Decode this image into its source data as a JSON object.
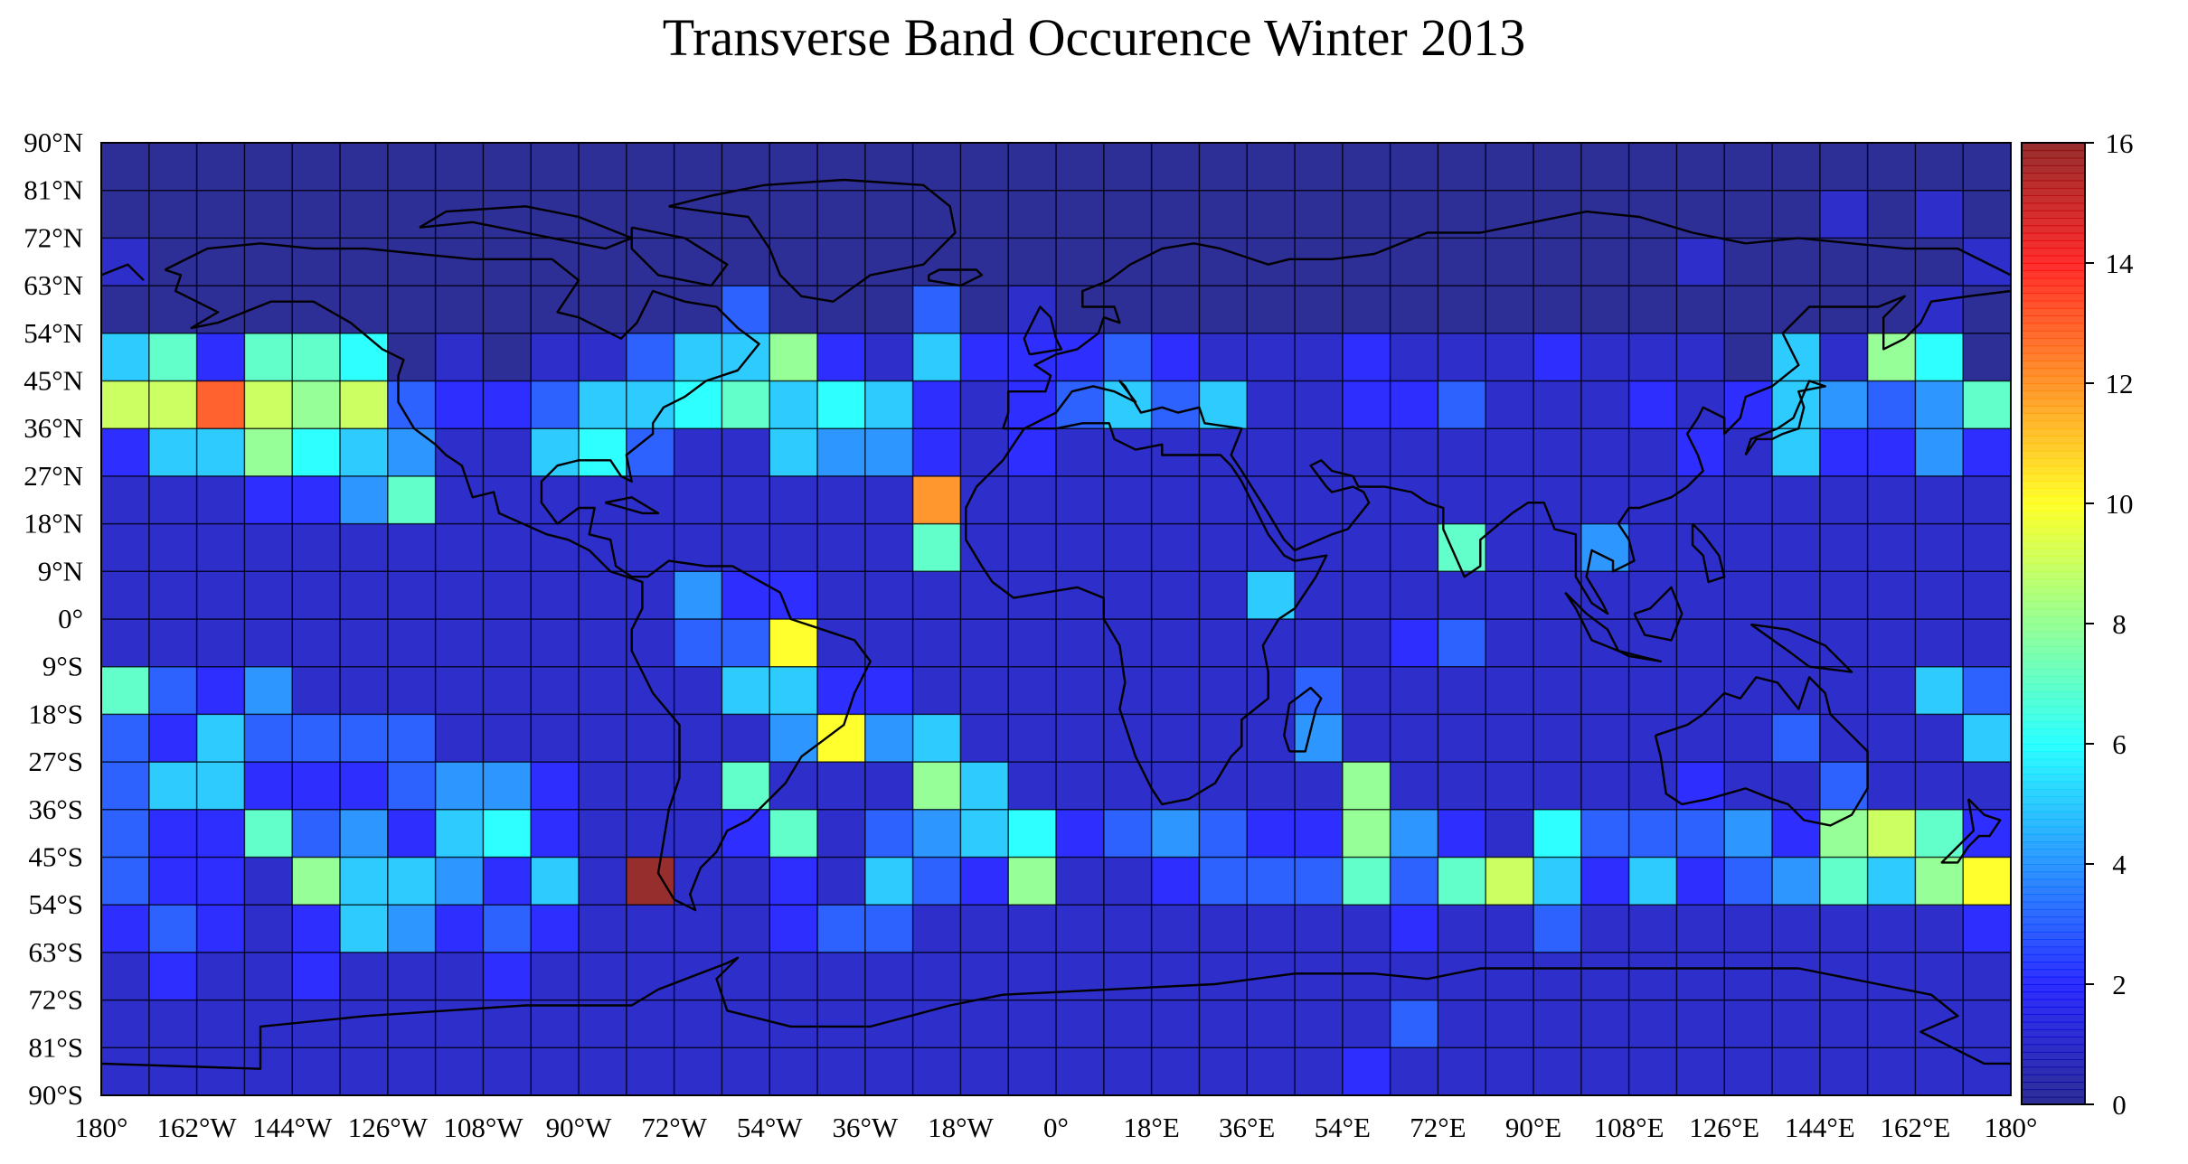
{
  "chart_data": {
    "type": "heatmap",
    "title": "Transverse Band Occurence Winter 2013",
    "xlabel": "",
    "ylabel": "",
    "x_tick_labels": [
      "180°",
      "162°W",
      "144°W",
      "126°W",
      "108°W",
      "90°W",
      "72°W",
      "54°W",
      "36°W",
      "18°W",
      "0°",
      "18°E",
      "36°E",
      "54°E",
      "72°E",
      "90°E",
      "108°E",
      "126°E",
      "144°E",
      "162°E",
      "180°"
    ],
    "y_tick_labels": [
      "90°N",
      "81°N",
      "72°N",
      "63°N",
      "54°N",
      "45°N",
      "36°N",
      "27°N",
      "18°N",
      "9°N",
      "0°",
      "9°S",
      "18°S",
      "27°S",
      "36°S",
      "45°S",
      "54°S",
      "63°S",
      "72°S",
      "81°S",
      "90°S"
    ],
    "xlim": [
      -180,
      180
    ],
    "ylim": [
      -90,
      90
    ],
    "grid_resolution_deg": 9,
    "colorbar": {
      "colormap": "jet",
      "range": [
        0,
        16
      ],
      "tick_labels": [
        "0",
        "2",
        "4",
        "6",
        "8",
        "10",
        "12",
        "14",
        "16"
      ],
      "placement": "right"
    },
    "grid": true,
    "row_order": "north-to-south (90°N to 90°S), columns west-to-east (180° to 180°)",
    "values": [
      [
        0,
        0,
        0,
        0,
        0,
        0,
        0,
        0,
        0,
        0,
        0,
        0,
        0,
        0,
        0,
        0,
        0,
        0,
        0,
        0,
        0,
        0,
        0,
        0,
        0,
        0,
        0,
        0,
        0,
        0,
        0,
        0,
        0,
        0,
        0,
        0,
        0,
        0,
        0,
        0
      ],
      [
        0,
        0,
        0,
        0,
        0,
        0,
        0,
        0,
        0,
        0,
        0,
        0,
        0,
        0,
        0,
        0,
        0,
        0,
        0,
        0,
        0,
        0,
        0,
        0,
        0,
        0,
        0,
        0,
        0,
        0,
        0,
        0,
        0,
        0,
        0,
        0,
        1,
        0,
        1,
        0
      ],
      [
        1,
        0,
        0,
        0,
        0,
        0,
        0,
        0,
        0,
        0,
        0,
        0,
        0,
        0,
        0,
        0,
        0,
        0,
        0,
        0,
        0,
        0,
        0,
        0,
        0,
        0,
        0,
        0,
        0,
        0,
        0,
        0,
        0,
        1,
        0,
        0,
        0,
        0,
        0,
        1
      ],
      [
        0,
        0,
        0,
        0,
        0,
        0,
        0,
        0,
        0,
        0,
        0,
        0,
        0,
        3,
        0,
        0,
        0,
        3,
        0,
        1,
        0,
        0,
        0,
        0,
        0,
        0,
        0,
        0,
        0,
        0,
        0,
        0,
        0,
        0,
        0,
        0,
        0,
        0,
        1,
        0
      ],
      [
        5,
        7,
        2,
        7,
        7,
        6,
        0,
        1,
        0,
        1,
        1,
        3,
        5,
        5,
        8,
        2,
        1,
        5,
        2,
        2,
        2,
        3,
        2,
        1,
        1,
        1,
        2,
        1,
        1,
        1,
        2,
        1,
        1,
        1,
        0,
        5,
        1,
        8,
        6,
        0
      ],
      [
        9,
        9,
        13,
        9,
        8,
        9,
        3,
        2,
        2,
        3,
        5,
        5,
        6,
        7,
        5,
        6,
        5,
        2,
        1,
        2,
        3,
        5,
        3,
        5,
        1,
        1,
        2,
        2,
        3,
        1,
        1,
        1,
        2,
        1,
        2,
        5,
        4,
        3,
        4,
        7
      ],
      [
        2,
        5,
        5,
        8,
        6,
        5,
        4,
        1,
        1,
        5,
        6,
        3,
        1,
        1,
        5,
        4,
        4,
        2,
        1,
        2,
        1,
        1,
        1,
        1,
        1,
        1,
        1,
        1,
        1,
        1,
        1,
        1,
        1,
        2,
        1,
        5,
        2,
        2,
        4,
        2
      ],
      [
        1,
        1,
        1,
        2,
        2,
        4,
        7,
        1,
        1,
        1,
        1,
        1,
        1,
        1,
        1,
        1,
        1,
        12,
        1,
        1,
        1,
        1,
        1,
        1,
        1,
        1,
        1,
        1,
        1,
        1,
        1,
        1,
        1,
        1,
        1,
        1,
        1,
        1,
        1,
        1
      ],
      [
        1,
        1,
        1,
        1,
        1,
        1,
        1,
        1,
        1,
        1,
        1,
        1,
        1,
        1,
        1,
        1,
        1,
        7,
        1,
        1,
        1,
        1,
        1,
        1,
        1,
        1,
        1,
        1,
        7,
        1,
        1,
        4,
        1,
        1,
        1,
        1,
        1,
        1,
        1,
        1
      ],
      [
        1,
        1,
        1,
        1,
        1,
        1,
        1,
        1,
        1,
        1,
        1,
        1,
        4,
        2,
        2,
        1,
        1,
        1,
        1,
        1,
        1,
        1,
        1,
        1,
        5,
        1,
        1,
        1,
        1,
        1,
        1,
        1,
        1,
        1,
        1,
        1,
        1,
        1,
        1,
        1
      ],
      [
        1,
        1,
        1,
        1,
        1,
        1,
        1,
        1,
        1,
        1,
        1,
        1,
        3,
        3,
        10,
        1,
        1,
        1,
        1,
        1,
        1,
        1,
        1,
        1,
        1,
        1,
        1,
        2,
        3,
        1,
        1,
        1,
        1,
        1,
        1,
        1,
        1,
        1,
        1,
        1
      ],
      [
        7,
        3,
        2,
        4,
        1,
        1,
        1,
        1,
        1,
        1,
        1,
        1,
        1,
        5,
        5,
        2,
        2,
        1,
        1,
        1,
        1,
        1,
        1,
        1,
        1,
        3,
        1,
        1,
        1,
        1,
        1,
        1,
        1,
        1,
        1,
        1,
        1,
        1,
        5,
        3
      ],
      [
        3,
        2,
        5,
        3,
        3,
        3,
        3,
        1,
        1,
        1,
        1,
        1,
        1,
        1,
        4,
        10,
        4,
        5,
        1,
        1,
        1,
        1,
        1,
        1,
        1,
        4,
        1,
        1,
        1,
        1,
        1,
        1,
        1,
        1,
        1,
        3,
        1,
        1,
        1,
        5
      ],
      [
        3,
        5,
        5,
        2,
        2,
        2,
        3,
        4,
        4,
        2,
        1,
        1,
        1,
        7,
        1,
        1,
        1,
        8,
        5,
        1,
        1,
        1,
        1,
        1,
        1,
        1,
        8,
        1,
        1,
        1,
        1,
        1,
        1,
        2,
        1,
        1,
        3,
        1,
        1,
        1
      ],
      [
        3,
        2,
        2,
        7,
        3,
        4,
        2,
        5,
        6,
        2,
        1,
        1,
        1,
        2,
        7,
        1,
        3,
        4,
        5,
        6,
        2,
        3,
        4,
        3,
        2,
        2,
        8,
        4,
        2,
        1,
        6,
        3,
        3,
        3,
        4,
        2,
        8,
        9,
        7,
        2
      ],
      [
        3,
        2,
        2,
        1,
        8,
        5,
        5,
        4,
        2,
        5,
        1,
        16,
        1,
        1,
        2,
        1,
        5,
        3,
        2,
        8,
        1,
        1,
        2,
        3,
        3,
        3,
        7,
        3,
        7,
        9,
        5,
        2,
        5,
        2,
        3,
        4,
        7,
        5,
        8,
        10
      ],
      [
        2,
        3,
        2,
        1,
        2,
        5,
        4,
        2,
        3,
        2,
        1,
        1,
        1,
        1,
        2,
        3,
        3,
        1,
        1,
        1,
        1,
        1,
        1,
        1,
        1,
        1,
        1,
        2,
        1,
        1,
        3,
        1,
        1,
        1,
        1,
        1,
        1,
        1,
        1,
        2
      ],
      [
        1,
        2,
        1,
        1,
        2,
        1,
        1,
        1,
        2,
        1,
        1,
        1,
        1,
        1,
        1,
        1,
        1,
        1,
        1,
        1,
        1,
        1,
        1,
        1,
        1,
        1,
        1,
        1,
        1,
        1,
        1,
        1,
        1,
        1,
        1,
        1,
        1,
        1,
        1,
        1
      ],
      [
        1,
        1,
        1,
        1,
        1,
        1,
        1,
        1,
        1,
        1,
        1,
        1,
        1,
        1,
        1,
        1,
        1,
        1,
        1,
        1,
        1,
        1,
        1,
        1,
        1,
        1,
        1,
        3,
        1,
        1,
        1,
        1,
        1,
        1,
        1,
        1,
        1,
        1,
        1,
        1
      ],
      [
        1,
        1,
        1,
        1,
        1,
        1,
        1,
        1,
        1,
        1,
        1,
        1,
        1,
        1,
        1,
        1,
        1,
        1,
        1,
        1,
        1,
        1,
        1,
        1,
        1,
        1,
        2,
        1,
        1,
        1,
        1,
        1,
        1,
        1,
        1,
        1,
        1,
        1,
        1,
        1
      ]
    ]
  },
  "colors": {
    "grid_line": "#000000",
    "background": "#ffffff",
    "coastline": "#000000"
  }
}
